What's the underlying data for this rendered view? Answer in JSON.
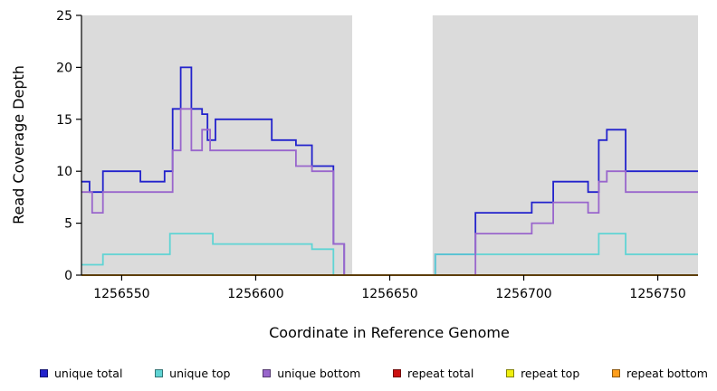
{
  "figure": {
    "background": "#ffffff",
    "axis_color": "#000000"
  },
  "chart_data": {
    "type": "line",
    "subtype": "step",
    "title": "",
    "xlabel": "Coordinate in Reference Genome",
    "ylabel": "Read Coverage Depth",
    "xlim": [
      1256535,
      1256765
    ],
    "ylim": [
      0,
      25
    ],
    "xticks": [
      1256550,
      1256600,
      1256650,
      1256700,
      1256750
    ],
    "yticks": [
      0,
      5,
      10,
      15,
      20,
      25
    ],
    "grid": false,
    "plot_bg": "#dbdbdb",
    "gap_region": {
      "start": 1256636,
      "end": 1256666,
      "color": "#ffffff"
    },
    "legend_position": "bottom",
    "series": [
      {
        "name": "unique total",
        "color": "#2222cc",
        "points": [
          [
            1256535,
            9
          ],
          [
            1256538,
            8
          ],
          [
            1256543,
            10
          ],
          [
            1256557,
            9
          ],
          [
            1256566,
            10
          ],
          [
            1256569,
            16
          ],
          [
            1256572,
            20
          ],
          [
            1256576,
            16
          ],
          [
            1256580,
            15.5
          ],
          [
            1256582,
            13
          ],
          [
            1256585,
            15
          ],
          [
            1256606,
            13
          ],
          [
            1256615,
            12.5
          ],
          [
            1256621,
            10.5
          ],
          [
            1256629,
            3
          ],
          [
            1256633,
            0
          ],
          [
            1256667,
            2
          ],
          [
            1256682,
            6
          ],
          [
            1256703,
            7
          ],
          [
            1256711,
            9
          ],
          [
            1256724,
            8
          ],
          [
            1256728,
            13
          ],
          [
            1256731,
            14
          ],
          [
            1256738,
            10
          ],
          [
            1256765,
            10
          ]
        ]
      },
      {
        "name": "unique top",
        "color": "#5fd4d4",
        "points": [
          [
            1256535,
            1
          ],
          [
            1256543,
            2
          ],
          [
            1256568,
            4
          ],
          [
            1256584,
            3
          ],
          [
            1256621,
            2.5
          ],
          [
            1256629,
            0
          ],
          [
            1256667,
            2
          ],
          [
            1256728,
            4
          ],
          [
            1256738,
            2
          ],
          [
            1256765,
            2
          ]
        ]
      },
      {
        "name": "unique bottom",
        "color": "#9966cc",
        "points": [
          [
            1256535,
            8
          ],
          [
            1256539,
            6
          ],
          [
            1256543,
            8
          ],
          [
            1256569,
            12
          ],
          [
            1256572,
            16
          ],
          [
            1256576,
            12
          ],
          [
            1256580,
            14
          ],
          [
            1256583,
            12
          ],
          [
            1256615,
            10.5
          ],
          [
            1256621,
            10
          ],
          [
            1256629,
            3
          ],
          [
            1256633,
            0
          ],
          [
            1256682,
            4
          ],
          [
            1256703,
            5
          ],
          [
            1256711,
            7
          ],
          [
            1256724,
            6
          ],
          [
            1256728,
            9
          ],
          [
            1256731,
            10
          ],
          [
            1256738,
            8
          ],
          [
            1256765,
            8
          ]
        ]
      },
      {
        "name": "repeat total",
        "color": "#cc1111",
        "points": [
          [
            1256535,
            0
          ],
          [
            1256765,
            0
          ]
        ]
      },
      {
        "name": "repeat top",
        "color": "#efef0f",
        "points": [
          [
            1256535,
            0
          ],
          [
            1256765,
            0
          ]
        ]
      },
      {
        "name": "repeat bottom",
        "color": "#ff9e1b",
        "points": [
          [
            1256535,
            0
          ],
          [
            1256765,
            0
          ]
        ]
      }
    ]
  }
}
